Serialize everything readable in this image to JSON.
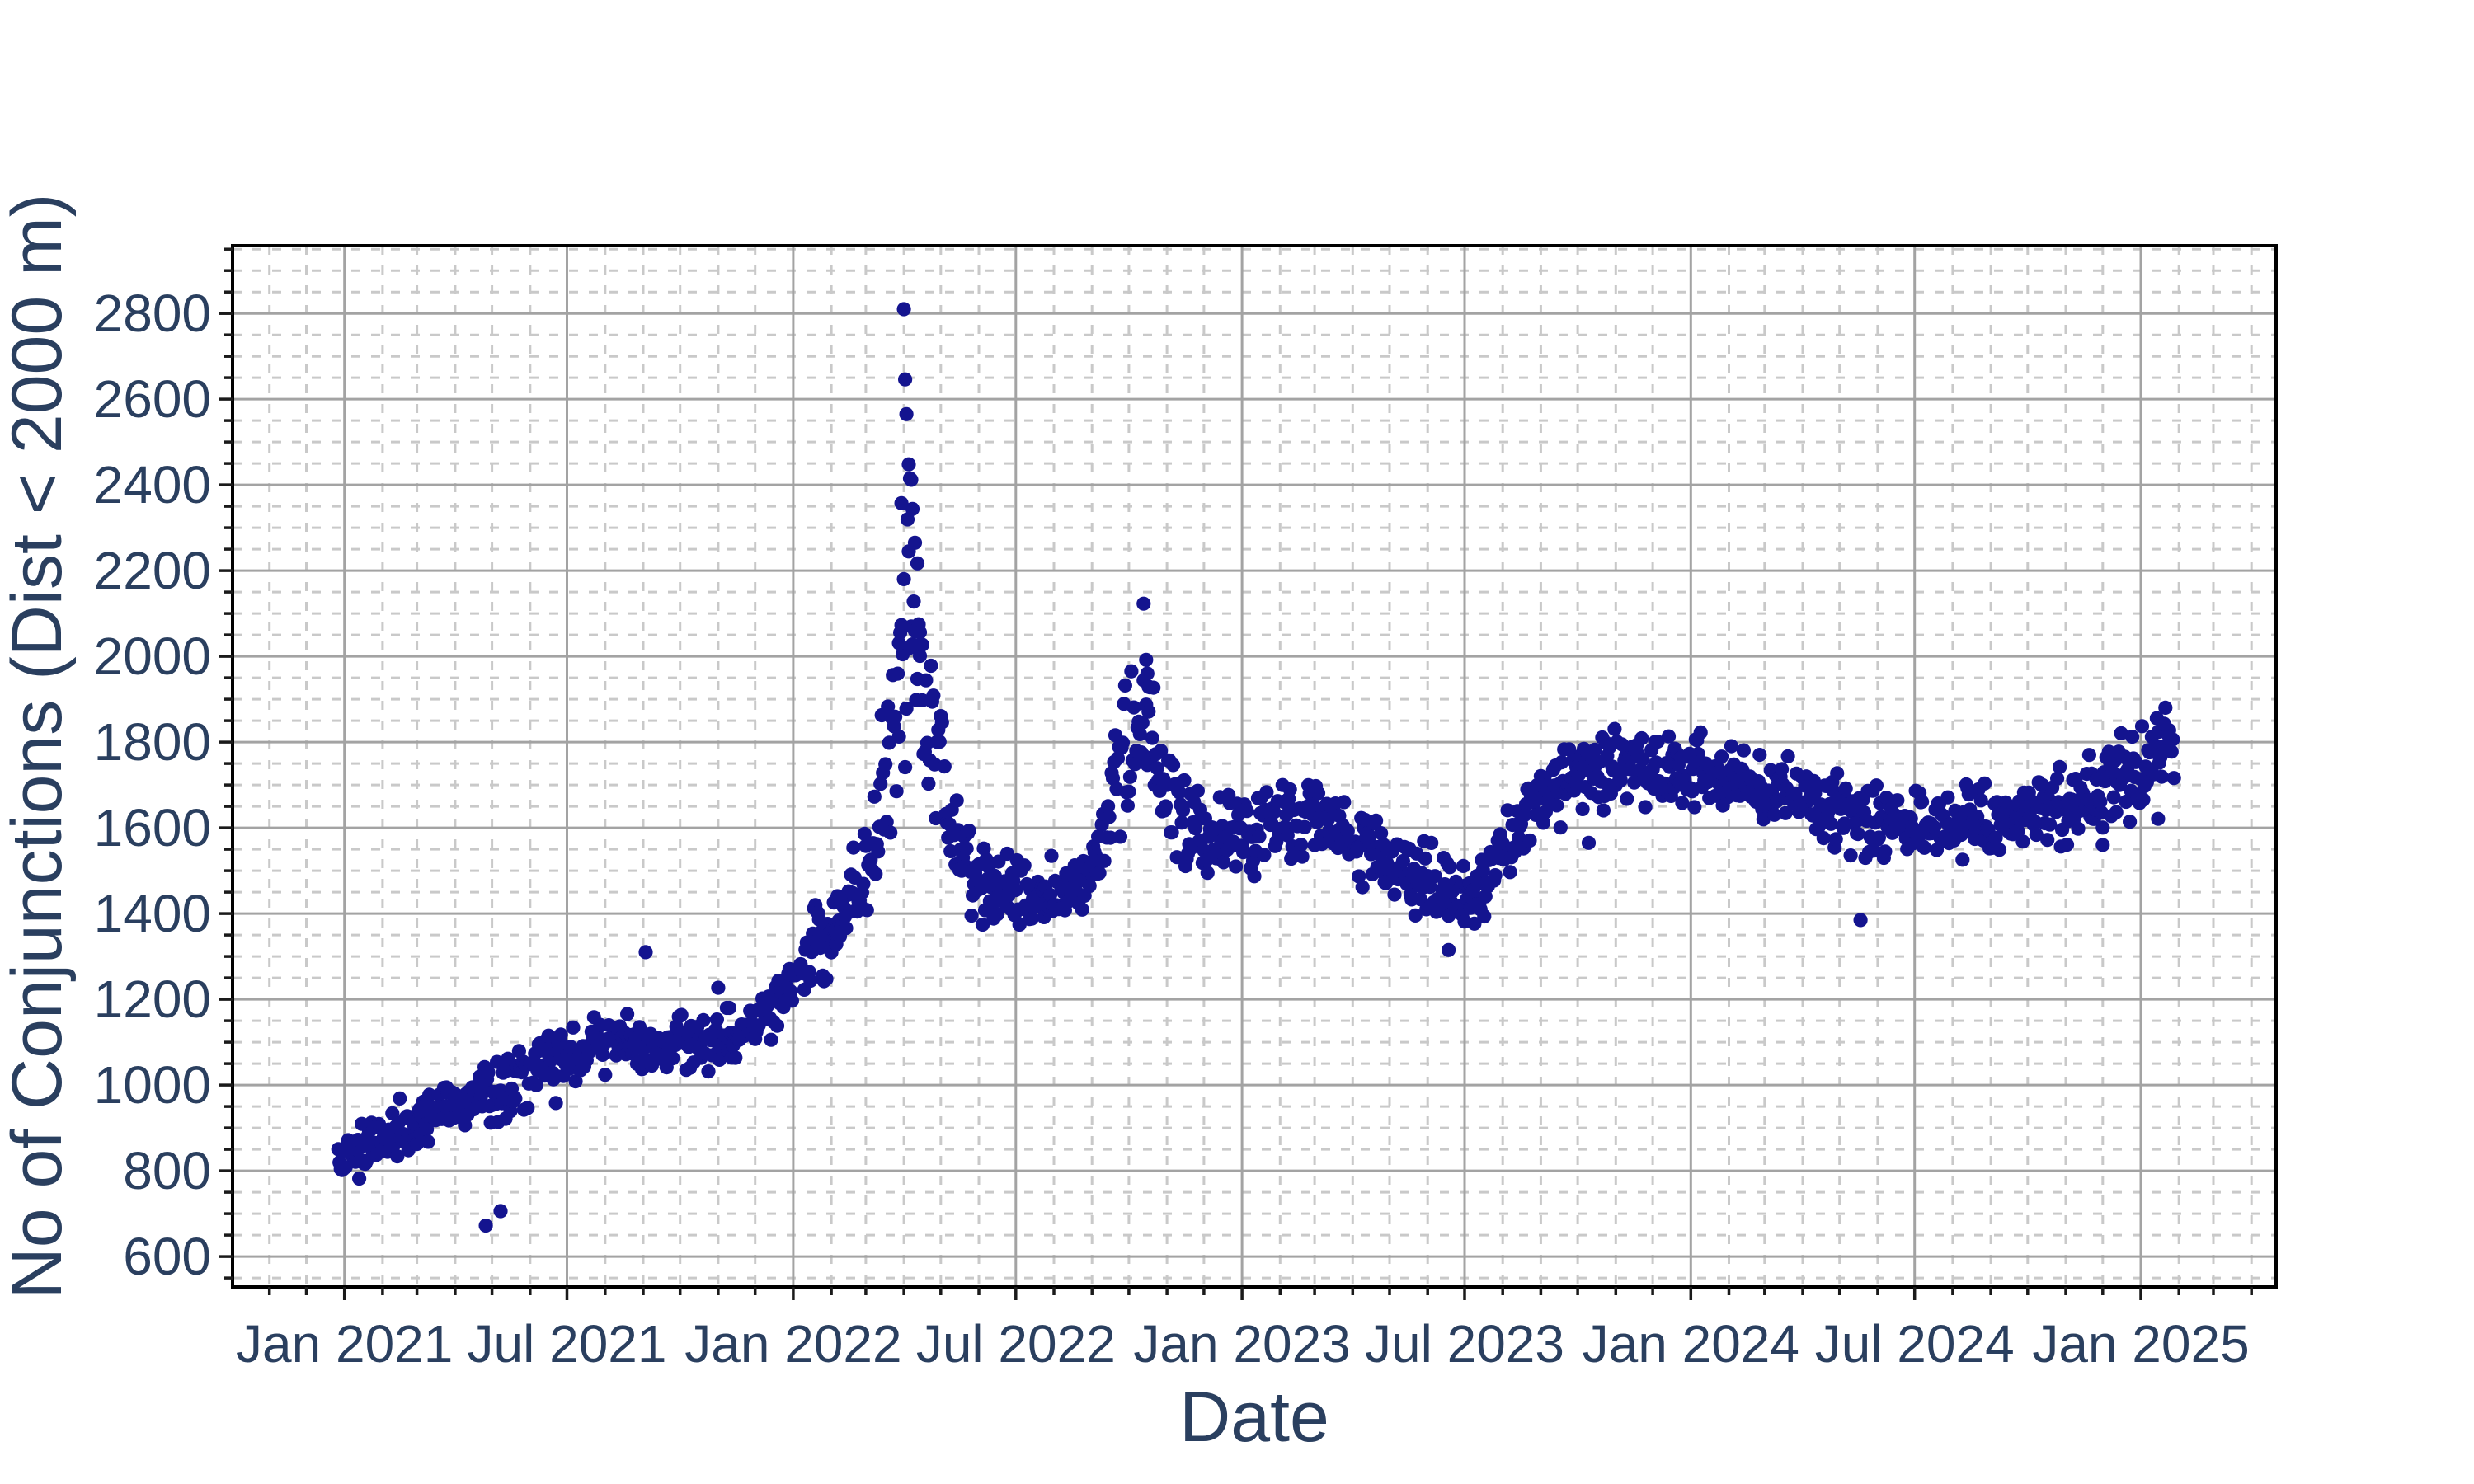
{
  "chart_data": {
    "type": "scatter",
    "title": "",
    "xlabel": "Date",
    "ylabel": "No of Conjunctions (Dist < 2000 m)",
    "x_tick_labels": [
      "Jan 2021",
      "Jul 2021",
      "Jan 2022",
      "Jul 2022",
      "Jan 2023",
      "Jul 2023",
      "Jan 2024",
      "Jul 2024",
      "Jan 2025"
    ],
    "y_ticks": [
      600,
      800,
      1000,
      1200,
      1400,
      1600,
      1800,
      2000,
      2200,
      2400,
      2600,
      2800
    ],
    "x_range": [
      "2020-10-02",
      "2025-04-21"
    ],
    "y_range": [
      529,
      2958
    ],
    "y_minor_step": 50,
    "x_minor": "monthly",
    "legend": "none",
    "grid": {
      "major_color": "#a3a3a3",
      "minor_color": "#c9c9c9",
      "minor_dash": "11 13",
      "line_width": 3
    },
    "axis": {
      "border_color": "#000000",
      "tick_color": "#1a1a1a",
      "text_color": "#2a3f5f"
    },
    "marker": {
      "color": "#14148f",
      "radius": 8.6,
      "opacity": 1
    },
    "seed": 1337,
    "series_summary": {
      "description": "Daily count of conjunctions with miss distance below 2000 m, late Dec 2020 through late Jan 2025; steady rise in 2021 (~800 to ~1100), ramp through early 2022, extreme spike to 2810 in early Apr 2022, secondary peak 2123 mid-Oct 2022, mid-band 1400-1650 through 2023, plateau 1600-1750 in 2024, rising to ~1800 by Jan 2025.",
      "start_date": "2020-12-27",
      "end_date": "2025-01-28",
      "points_per_day": 1,
      "trend_anchors": [
        [
          "2020-12-27",
          830,
          30
        ],
        [
          "2021-01-15",
          858,
          32
        ],
        [
          "2021-02-15",
          895,
          32
        ],
        [
          "2021-03-15",
          935,
          32
        ],
        [
          "2021-04-15",
          965,
          34
        ],
        [
          "2021-05-15",
          1008,
          36
        ],
        [
          "2021-06-15",
          1052,
          36
        ],
        [
          "2021-07-15",
          1082,
          32
        ],
        [
          "2021-08-15",
          1092,
          32
        ],
        [
          "2021-09-15",
          1098,
          30
        ],
        [
          "2021-10-15",
          1092,
          30
        ],
        [
          "2021-11-15",
          1112,
          32
        ],
        [
          "2021-12-15",
          1178,
          36
        ],
        [
          "2022-01-15",
          1300,
          46
        ],
        [
          "2022-02-15",
          1418,
          42
        ],
        [
          "2022-03-08",
          1560,
          70
        ],
        [
          "2022-03-16",
          1680,
          100
        ],
        [
          "2022-03-24",
          1800,
          130
        ],
        [
          "2022-03-30",
          2060,
          170
        ],
        [
          "2022-04-04",
          2200,
          180
        ],
        [
          "2022-04-10",
          1980,
          130
        ],
        [
          "2022-04-16",
          1880,
          90
        ],
        [
          "2022-04-24",
          1790,
          75
        ],
        [
          "2022-05-06",
          1650,
          60
        ],
        [
          "2022-05-18",
          1545,
          50
        ],
        [
          "2022-05-28",
          1490,
          45
        ],
        [
          "2022-06-12",
          1452,
          40
        ],
        [
          "2022-07-10",
          1442,
          40
        ],
        [
          "2022-08-08",
          1438,
          42
        ],
        [
          "2022-09-01",
          1520,
          50
        ],
        [
          "2022-09-20",
          1695,
          70
        ],
        [
          "2022-10-08",
          1855,
          75
        ],
        [
          "2022-10-16",
          1840,
          70
        ],
        [
          "2022-10-26",
          1715,
          60
        ],
        [
          "2022-11-15",
          1618,
          46
        ],
        [
          "2022-12-10",
          1572,
          42
        ],
        [
          "2023-01-15",
          1592,
          45
        ],
        [
          "2023-02-15",
          1622,
          46
        ],
        [
          "2023-03-15",
          1598,
          45
        ],
        [
          "2023-04-15",
          1545,
          45
        ],
        [
          "2023-05-15",
          1495,
          42
        ],
        [
          "2023-06-15",
          1458,
          40
        ],
        [
          "2023-07-08",
          1432,
          40
        ],
        [
          "2023-08-01",
          1540,
          46
        ],
        [
          "2023-08-25",
          1642,
          46
        ],
        [
          "2023-09-15",
          1700,
          45
        ],
        [
          "2023-10-15",
          1735,
          45
        ],
        [
          "2023-11-15",
          1745,
          45
        ],
        [
          "2023-12-15",
          1728,
          46
        ],
        [
          "2024-01-15",
          1718,
          46
        ],
        [
          "2024-02-15",
          1695,
          45
        ],
        [
          "2024-03-15",
          1675,
          42
        ],
        [
          "2024-04-15",
          1645,
          42
        ],
        [
          "2024-05-15",
          1625,
          40
        ],
        [
          "2024-06-15",
          1612,
          40
        ],
        [
          "2024-07-15",
          1605,
          38
        ],
        [
          "2024-08-15",
          1615,
          38
        ],
        [
          "2024-09-15",
          1618,
          38
        ],
        [
          "2024-10-15",
          1635,
          40
        ],
        [
          "2024-11-15",
          1662,
          45
        ],
        [
          "2024-12-10",
          1708,
          50
        ],
        [
          "2025-01-05",
          1762,
          55
        ],
        [
          "2025-01-28",
          1788,
          55
        ]
      ],
      "outliers": [
        [
          "2021-04-26",
          672
        ],
        [
          "2021-05-08",
          706
        ],
        [
          "2021-06-22",
          958
        ],
        [
          "2021-09-03",
          1310
        ],
        [
          "2021-11-01",
          1227
        ],
        [
          "2022-03-28",
          2031
        ],
        [
          "2022-03-30",
          2073
        ],
        [
          "2022-04-01",
          2810
        ],
        [
          "2022-04-02",
          2646
        ],
        [
          "2022-04-03",
          2565
        ],
        [
          "2022-04-05",
          2448
        ],
        [
          "2022-04-06",
          2415
        ],
        [
          "2022-04-07",
          2412
        ],
        [
          "2022-04-08",
          2344
        ],
        [
          "2022-04-10",
          2265
        ],
        [
          "2022-04-12",
          2217
        ],
        [
          "2022-04-14",
          2056
        ],
        [
          "2022-04-16",
          2027
        ],
        [
          "2022-10-13",
          2123
        ],
        [
          "2022-10-15",
          1992
        ],
        [
          "2022-10-16",
          1960
        ],
        [
          "2022-10-17",
          1929
        ],
        [
          "2023-06-18",
          1315
        ],
        [
          "2023-10-10",
          1565
        ],
        [
          "2024-05-18",
          1385
        ],
        [
          "2024-12-01",
          1560
        ],
        [
          "2025-01-15",
          1621
        ]
      ]
    }
  }
}
